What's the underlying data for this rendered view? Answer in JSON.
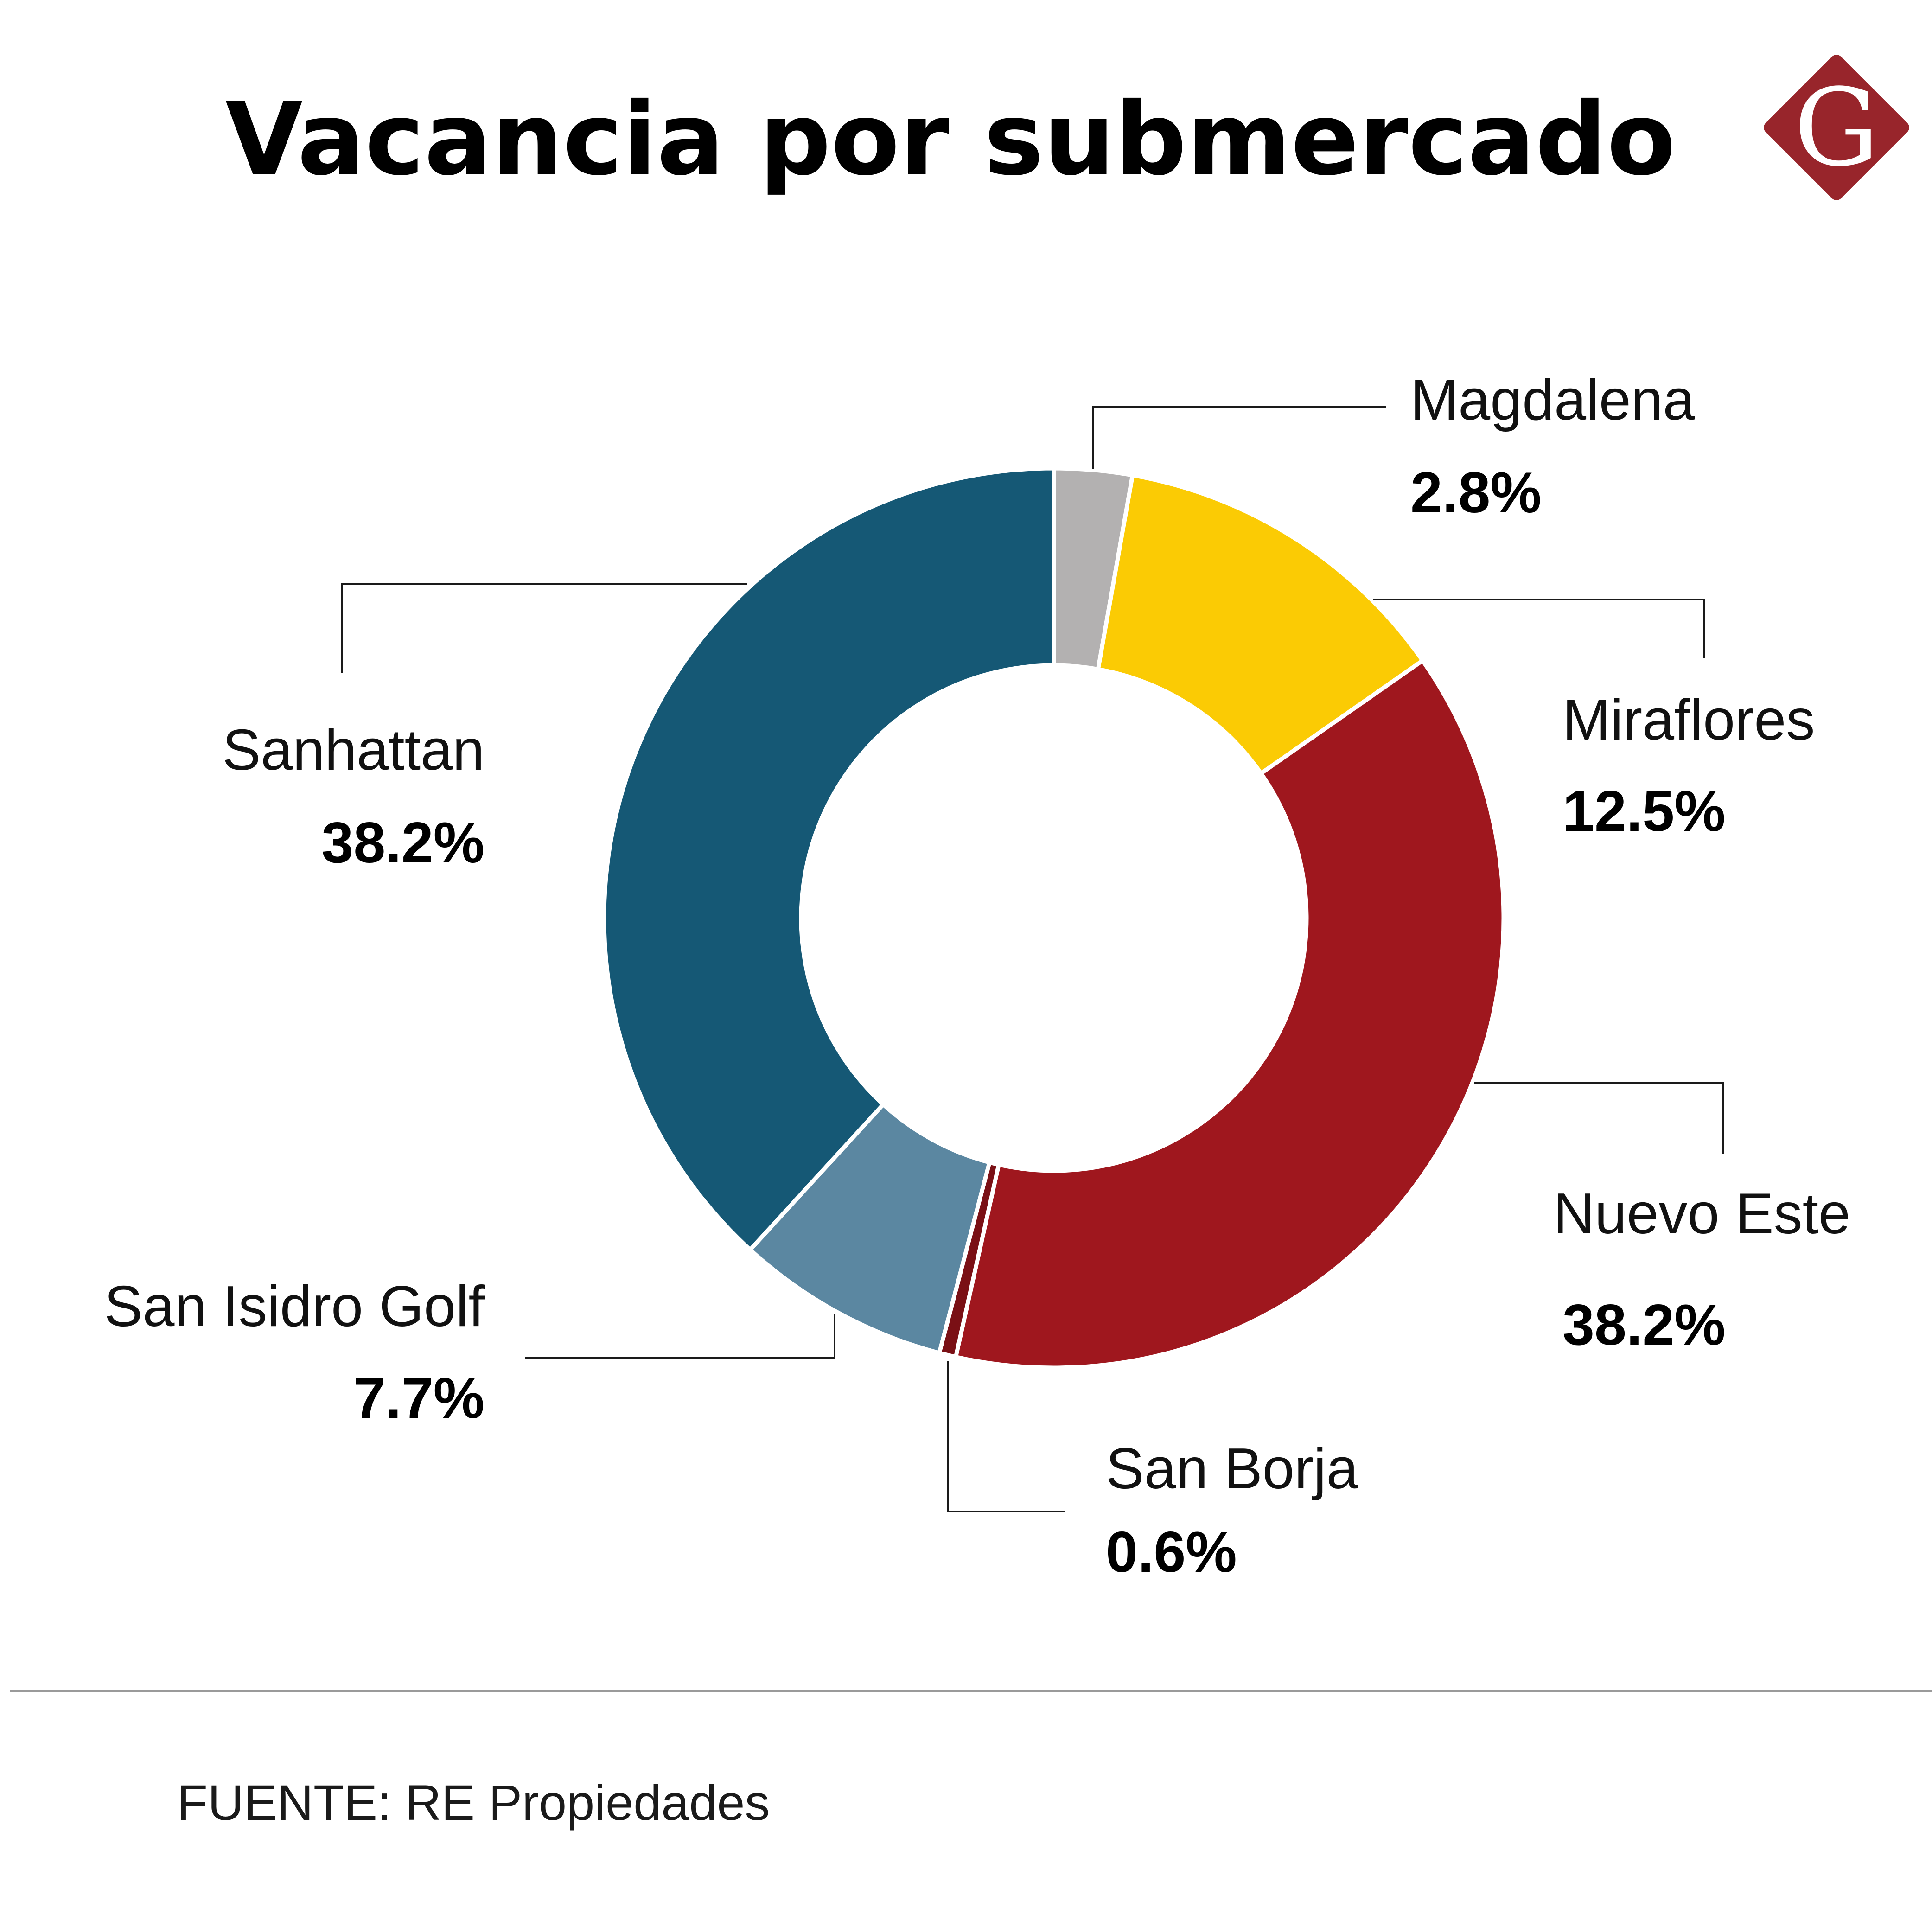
{
  "title": "Vacancia por submercado",
  "logo": {
    "letter": "G",
    "color": "#98252b"
  },
  "source": "FUENTE: RE Propiedades",
  "chart_data": {
    "type": "pie",
    "title": "Vacancia por submercado",
    "donut": true,
    "unit": "%",
    "start": "top (12 o'clock), clockwise",
    "slices": [
      {
        "name": "Magdalena",
        "value": 2.8,
        "label": "2.8%",
        "color": "#b3b1b1"
      },
      {
        "name": "Miraflores",
        "value": 12.5,
        "label": "12.5%",
        "color": "#fbcb04"
      },
      {
        "name": "Nuevo Este",
        "value": 38.2,
        "label": "38.2%",
        "color": "#9f171e"
      },
      {
        "name": "San Borja",
        "value": 0.6,
        "label": "0.6%",
        "color": "#7a1015"
      },
      {
        "name": "San Isidro Golf",
        "value": 7.7,
        "label": "7.7%",
        "color": "#5b87a1"
      },
      {
        "name": "Sanhattan",
        "value": 38.2,
        "label": "38.2%",
        "color": "#155875"
      }
    ]
  }
}
